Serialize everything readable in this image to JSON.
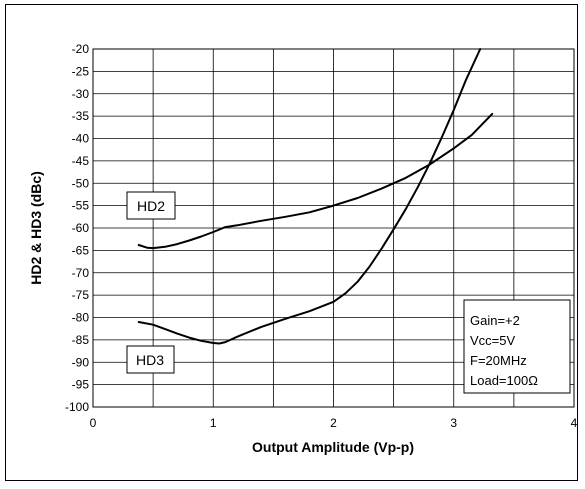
{
  "chart_data": {
    "type": "line",
    "title": "",
    "xlabel": "Output Amplitude  (Vp-p)",
    "ylabel": "HD2 & HD3  (dBc)",
    "xlim": [
      0,
      4
    ],
    "ylim": [
      -100,
      -20
    ],
    "x_ticks": [
      "0",
      "1",
      "2",
      "3",
      "4"
    ],
    "y_ticks": [
      "-20",
      "-25",
      "-30",
      "-35",
      "-40",
      "-45",
      "-50",
      "-55",
      "-60",
      "-65",
      "-70",
      "-75",
      "-80",
      "-85",
      "-90",
      "-95",
      "-100"
    ],
    "grid": true,
    "series": [
      {
        "name": "HD2",
        "points": [
          [
            0.38,
            -63.8
          ],
          [
            0.45,
            -64.4
          ],
          [
            0.5,
            -64.5
          ],
          [
            0.6,
            -64.2
          ],
          [
            0.7,
            -63.6
          ],
          [
            0.8,
            -62.8
          ],
          [
            0.9,
            -61.9
          ],
          [
            1.0,
            -60.9
          ],
          [
            1.1,
            -59.8
          ],
          [
            1.2,
            -59.4
          ],
          [
            1.4,
            -58.4
          ],
          [
            1.6,
            -57.5
          ],
          [
            1.8,
            -56.5
          ],
          [
            2.0,
            -55.0
          ],
          [
            2.2,
            -53.3
          ],
          [
            2.4,
            -51.2
          ],
          [
            2.6,
            -48.8
          ],
          [
            2.8,
            -45.8
          ],
          [
            3.0,
            -42.2
          ],
          [
            3.15,
            -39.2
          ],
          [
            3.32,
            -34.5
          ]
        ],
        "color": "#000000"
      },
      {
        "name": "HD3",
        "points": [
          [
            0.38,
            -81.0
          ],
          [
            0.5,
            -81.6
          ],
          [
            0.6,
            -82.6
          ],
          [
            0.7,
            -83.6
          ],
          [
            0.8,
            -84.5
          ],
          [
            0.9,
            -85.2
          ],
          [
            1.0,
            -85.7
          ],
          [
            1.05,
            -85.8
          ],
          [
            1.1,
            -85.5
          ],
          [
            1.2,
            -84.3
          ],
          [
            1.4,
            -82.1
          ],
          [
            1.6,
            -80.3
          ],
          [
            1.8,
            -78.6
          ],
          [
            2.0,
            -76.5
          ],
          [
            2.1,
            -74.6
          ],
          [
            2.2,
            -72.0
          ],
          [
            2.3,
            -68.6
          ],
          [
            2.4,
            -64.6
          ],
          [
            2.5,
            -60.3
          ],
          [
            2.6,
            -55.8
          ],
          [
            2.7,
            -50.9
          ],
          [
            2.8,
            -45.6
          ],
          [
            2.9,
            -39.8
          ],
          [
            3.0,
            -33.6
          ],
          [
            3.1,
            -27.0
          ],
          [
            3.22,
            -20.0
          ]
        ],
        "color": "#000000"
      }
    ],
    "labels": {
      "hd2": "HD2",
      "hd3": "HD3"
    },
    "annotation": [
      "Gain=+2",
      "Vcc=5V",
      "F=20MHz",
      "Load=100Ω"
    ]
  }
}
